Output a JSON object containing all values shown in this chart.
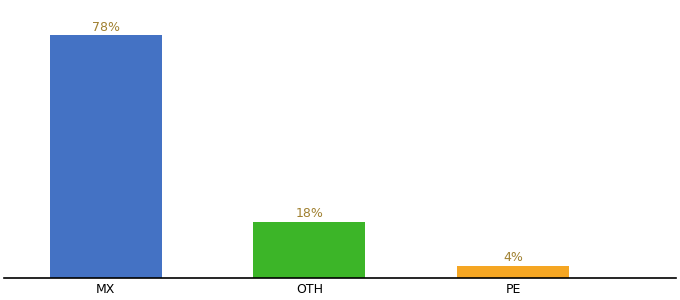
{
  "categories": [
    "MX",
    "OTH",
    "PE"
  ],
  "values": [
    78,
    18,
    4
  ],
  "bar_colors": [
    "#4472c4",
    "#3cb528",
    "#f5a623"
  ],
  "labels": [
    "78%",
    "18%",
    "4%"
  ],
  "ylim": [
    0,
    88
  ],
  "bar_width": 0.55,
  "label_color": "#a08030",
  "background_color": "#ffffff",
  "label_fontsize": 9,
  "tick_fontsize": 9,
  "x_positions": [
    0.22,
    0.52,
    0.78
  ]
}
